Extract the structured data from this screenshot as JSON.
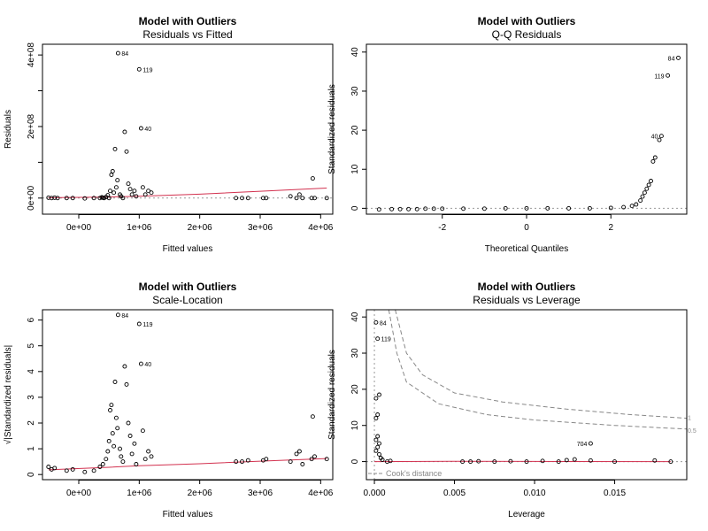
{
  "chart_data": [
    {
      "type": "scatter",
      "title": "Model with Outliers",
      "subtitle": "Residuals vs Fitted",
      "xlabel": "Fitted values",
      "ylabel": "Residuals",
      "xlim": [
        -600000,
        4200000
      ],
      "ylim": [
        -45000000,
        430000000
      ],
      "x_ticks": [
        0,
        1000000,
        2000000,
        3000000,
        4000000
      ],
      "x_tick_labels": [
        "0e+00",
        "1e+06",
        "2e+06",
        "3e+06",
        "4e+06"
      ],
      "y_ticks": [
        0,
        100000000,
        200000000,
        300000000,
        400000000
      ],
      "y_tick_labels": [
        "0e+00",
        "",
        "2e+08",
        "",
        "4e+08"
      ],
      "reference_line": 0,
      "smooth_line": [
        [
          -500000,
          1000000
        ],
        [
          500000,
          3000000
        ],
        [
          1000000,
          5000000
        ],
        [
          2000000,
          11000000
        ],
        [
          3000000,
          19000000
        ],
        [
          4100000,
          28000000
        ]
      ],
      "points": [
        {
          "x": -500000,
          "y": 1000000
        },
        {
          "x": -450000,
          "y": 0
        },
        {
          "x": -400000,
          "y": 1000000
        },
        {
          "x": -350000,
          "y": 0
        },
        {
          "x": -200000,
          "y": 0
        },
        {
          "x": -100000,
          "y": 0
        },
        {
          "x": 100000,
          "y": -1000000
        },
        {
          "x": 250000,
          "y": 0
        },
        {
          "x": 350000,
          "y": 0
        },
        {
          "x": 380000,
          "y": 2000000
        },
        {
          "x": 400000,
          "y": 1000000
        },
        {
          "x": 420000,
          "y": 0
        },
        {
          "x": 450000,
          "y": 3000000
        },
        {
          "x": 480000,
          "y": 8000000
        },
        {
          "x": 500000,
          "y": 0
        },
        {
          "x": 520000,
          "y": 20000000
        },
        {
          "x": 540000,
          "y": 65000000
        },
        {
          "x": 560000,
          "y": 75000000
        },
        {
          "x": 580000,
          "y": 15000000
        },
        {
          "x": 600000,
          "y": 137000000
        },
        {
          "x": 620000,
          "y": 30000000
        },
        {
          "x": 640000,
          "y": 50000000
        },
        {
          "x": 650000,
          "y": 405000000
        },
        {
          "x": 680000,
          "y": 10000000
        },
        {
          "x": 700000,
          "y": 5000000
        },
        {
          "x": 730000,
          "y": 0
        },
        {
          "x": 760000,
          "y": 185000000
        },
        {
          "x": 790000,
          "y": 130000000
        },
        {
          "x": 820000,
          "y": 40000000
        },
        {
          "x": 850000,
          "y": 25000000
        },
        {
          "x": 880000,
          "y": 10000000
        },
        {
          "x": 920000,
          "y": 20000000
        },
        {
          "x": 950000,
          "y": 5000000
        },
        {
          "x": 1000000,
          "y": 360000000
        },
        {
          "x": 1030000,
          "y": 195000000
        },
        {
          "x": 1060000,
          "y": 30000000
        },
        {
          "x": 1100000,
          "y": 10000000
        },
        {
          "x": 1150000,
          "y": 20000000
        },
        {
          "x": 1200000,
          "y": 15000000
        },
        {
          "x": 2600000,
          "y": 0
        },
        {
          "x": 2700000,
          "y": 0
        },
        {
          "x": 2800000,
          "y": 0
        },
        {
          "x": 3050000,
          "y": 0
        },
        {
          "x": 3100000,
          "y": 0
        },
        {
          "x": 3500000,
          "y": 5000000
        },
        {
          "x": 3600000,
          "y": 0
        },
        {
          "x": 3650000,
          "y": 10000000
        },
        {
          "x": 3700000,
          "y": 0
        },
        {
          "x": 3850000,
          "y": 0
        },
        {
          "x": 3870000,
          "y": 55000000
        },
        {
          "x": 3900000,
          "y": 0
        },
        {
          "x": 4100000,
          "y": 0
        }
      ],
      "labels": [
        {
          "text": "84",
          "x": 650000,
          "y": 405000000
        },
        {
          "text": "119",
          "x": 1000000,
          "y": 360000000
        },
        {
          "text": "40",
          "x": 1030000,
          "y": 195000000
        }
      ]
    },
    {
      "type": "scatter",
      "title": "Model with Outliers",
      "subtitle": "Q-Q Residuals",
      "xlabel": "Theoretical Quantiles",
      "ylabel": "Standardized residuals",
      "xlim": [
        -3.8,
        3.8
      ],
      "ylim": [
        -1.5,
        42
      ],
      "x_ticks": [
        -2,
        0,
        2
      ],
      "x_tick_labels": [
        "-2",
        "0",
        "2"
      ],
      "y_ticks": [
        0,
        10,
        20,
        30,
        40
      ],
      "y_tick_labels": [
        "0",
        "10",
        "20",
        "30",
        "40"
      ],
      "reference_line": 0,
      "points": [
        {
          "x": -3.5,
          "y": -0.3
        },
        {
          "x": -3.2,
          "y": -0.2
        },
        {
          "x": -3.0,
          "y": -0.2
        },
        {
          "x": -2.8,
          "y": -0.2
        },
        {
          "x": -2.6,
          "y": -0.2
        },
        {
          "x": -2.4,
          "y": -0.1
        },
        {
          "x": -2.2,
          "y": -0.1
        },
        {
          "x": -2.0,
          "y": -0.1
        },
        {
          "x": -1.5,
          "y": -0.1
        },
        {
          "x": -1.0,
          "y": -0.1
        },
        {
          "x": -0.5,
          "y": 0.0
        },
        {
          "x": 0.0,
          "y": 0.0
        },
        {
          "x": 0.5,
          "y": 0.0
        },
        {
          "x": 1.0,
          "y": 0.0
        },
        {
          "x": 1.5,
          "y": 0.0
        },
        {
          "x": 2.0,
          "y": 0.1
        },
        {
          "x": 2.3,
          "y": 0.3
        },
        {
          "x": 2.5,
          "y": 0.6
        },
        {
          "x": 2.6,
          "y": 1.0
        },
        {
          "x": 2.7,
          "y": 2.0
        },
        {
          "x": 2.75,
          "y": 3.0
        },
        {
          "x": 2.8,
          "y": 4.0
        },
        {
          "x": 2.85,
          "y": 5.0
        },
        {
          "x": 2.9,
          "y": 6.0
        },
        {
          "x": 2.95,
          "y": 7.0
        },
        {
          "x": 3.0,
          "y": 12.0
        },
        {
          "x": 3.05,
          "y": 13.0
        },
        {
          "x": 3.15,
          "y": 17.5
        },
        {
          "x": 3.2,
          "y": 18.5
        },
        {
          "x": 3.35,
          "y": 34.0
        },
        {
          "x": 3.6,
          "y": 38.5
        }
      ],
      "labels": [
        {
          "text": "84",
          "x": 3.6,
          "y": 38.5
        },
        {
          "text": "119",
          "x": 3.35,
          "y": 34.0
        },
        {
          "text": "40",
          "x": 3.2,
          "y": 18.5
        }
      ]
    },
    {
      "type": "scatter",
      "title": "Model with Outliers",
      "subtitle": "Scale-Location",
      "xlabel": "Fitted values",
      "ylabel": "√|Standardized residuals|",
      "xlim": [
        -600000,
        4200000
      ],
      "ylim": [
        -0.2,
        6.4
      ],
      "x_ticks": [
        0,
        1000000,
        2000000,
        3000000,
        4000000
      ],
      "x_tick_labels": [
        "0e+00",
        "1e+06",
        "2e+06",
        "3e+06",
        "4e+06"
      ],
      "y_ticks": [
        0,
        1,
        2,
        3,
        4,
        5,
        6
      ],
      "y_tick_labels": [
        "0",
        "1",
        "2",
        "3",
        "4",
        "5",
        "6"
      ],
      "smooth_line": [
        [
          -500000,
          0.18
        ],
        [
          500000,
          0.28
        ],
        [
          1000000,
          0.34
        ],
        [
          2000000,
          0.42
        ],
        [
          3000000,
          0.52
        ],
        [
          4100000,
          0.62
        ]
      ],
      "points": [
        {
          "x": -500000,
          "y": 0.3
        },
        {
          "x": -450000,
          "y": 0.2
        },
        {
          "x": -400000,
          "y": 0.25
        },
        {
          "x": -200000,
          "y": 0.15
        },
        {
          "x": -100000,
          "y": 0.2
        },
        {
          "x": 100000,
          "y": 0.1
        },
        {
          "x": 250000,
          "y": 0.15
        },
        {
          "x": 350000,
          "y": 0.3
        },
        {
          "x": 400000,
          "y": 0.4
        },
        {
          "x": 450000,
          "y": 0.6
        },
        {
          "x": 480000,
          "y": 0.9
        },
        {
          "x": 500000,
          "y": 1.3
        },
        {
          "x": 520000,
          "y": 2.5
        },
        {
          "x": 540000,
          "y": 2.7
        },
        {
          "x": 560000,
          "y": 1.6
        },
        {
          "x": 580000,
          "y": 1.1
        },
        {
          "x": 600000,
          "y": 3.6
        },
        {
          "x": 620000,
          "y": 2.2
        },
        {
          "x": 640000,
          "y": 1.8
        },
        {
          "x": 650000,
          "y": 6.2
        },
        {
          "x": 680000,
          "y": 1.0
        },
        {
          "x": 700000,
          "y": 0.7
        },
        {
          "x": 730000,
          "y": 0.5
        },
        {
          "x": 760000,
          "y": 4.2
        },
        {
          "x": 790000,
          "y": 3.5
        },
        {
          "x": 820000,
          "y": 2.0
        },
        {
          "x": 850000,
          "y": 1.5
        },
        {
          "x": 880000,
          "y": 0.8
        },
        {
          "x": 920000,
          "y": 1.2
        },
        {
          "x": 950000,
          "y": 0.4
        },
        {
          "x": 1000000,
          "y": 5.85
        },
        {
          "x": 1030000,
          "y": 4.3
        },
        {
          "x": 1060000,
          "y": 1.7
        },
        {
          "x": 1100000,
          "y": 0.6
        },
        {
          "x": 1150000,
          "y": 0.9
        },
        {
          "x": 1200000,
          "y": 0.7
        },
        {
          "x": 2600000,
          "y": 0.5
        },
        {
          "x": 2700000,
          "y": 0.5
        },
        {
          "x": 2800000,
          "y": 0.55
        },
        {
          "x": 3050000,
          "y": 0.55
        },
        {
          "x": 3100000,
          "y": 0.6
        },
        {
          "x": 3500000,
          "y": 0.5
        },
        {
          "x": 3600000,
          "y": 0.8
        },
        {
          "x": 3650000,
          "y": 0.9
        },
        {
          "x": 3700000,
          "y": 0.4
        },
        {
          "x": 3850000,
          "y": 0.6
        },
        {
          "x": 3870000,
          "y": 2.25
        },
        {
          "x": 3900000,
          "y": 0.7
        },
        {
          "x": 4100000,
          "y": 0.6
        }
      ],
      "labels": [
        {
          "text": "84",
          "x": 650000,
          "y": 6.2
        },
        {
          "text": "119",
          "x": 1000000,
          "y": 5.85
        },
        {
          "text": "40",
          "x": 1030000,
          "y": 4.3
        }
      ]
    },
    {
      "type": "scatter",
      "title": "Model with Outliers",
      "subtitle": "Residuals vs Leverage",
      "xlabel": "Leverage",
      "ylabel": "Standardized residuals",
      "xlim": [
        -0.0005,
        0.0195
      ],
      "ylim": [
        -5,
        42
      ],
      "x_ticks": [
        0,
        0.005,
        0.01,
        0.015
      ],
      "x_tick_labels": [
        "0.000",
        "0.005",
        "0.010",
        "0.015"
      ],
      "y_ticks": [
        0,
        10,
        20,
        30,
        40
      ],
      "y_tick_labels": [
        "0",
        "10",
        "20",
        "30",
        "40"
      ],
      "reference_line": 0,
      "cooks_legend": "Cook's distance",
      "cooks_contours": [
        {
          "label": "1",
          "points": [
            [
              0.0013,
              42
            ],
            [
              0.002,
              30
            ],
            [
              0.003,
              24
            ],
            [
              0.005,
              19
            ],
            [
              0.008,
              16.5
            ],
            [
              0.012,
              14.5
            ],
            [
              0.016,
              13
            ],
            [
              0.0195,
              12
            ]
          ]
        },
        {
          "label": "0.5",
          "points": [
            [
              0.0009,
              42
            ],
            [
              0.0014,
              30
            ],
            [
              0.002,
              22
            ],
            [
              0.004,
              16
            ],
            [
              0.007,
              13
            ],
            [
              0.01,
              11.5
            ],
            [
              0.015,
              10
            ],
            [
              0.0195,
              9
            ]
          ]
        }
      ],
      "smooth_line": [
        [
          0.0,
          0.0
        ],
        [
          0.005,
          0.1
        ],
        [
          0.01,
          0.05
        ],
        [
          0.0185,
          0.0
        ]
      ],
      "points": [
        {
          "x": 0.0001,
          "y": 38.5
        },
        {
          "x": 0.0002,
          "y": 34.0
        },
        {
          "x": 0.0003,
          "y": 18.5
        },
        {
          "x": 0.0001,
          "y": 17.5
        },
        {
          "x": 0.0002,
          "y": 13.0
        },
        {
          "x": 0.0001,
          "y": 12.0
        },
        {
          "x": 0.0002,
          "y": 7.0
        },
        {
          "x": 0.0001,
          "y": 6.0
        },
        {
          "x": 0.0003,
          "y": 5.0
        },
        {
          "x": 0.0002,
          "y": 4.0
        },
        {
          "x": 0.0001,
          "y": 3.0
        },
        {
          "x": 0.0003,
          "y": 2.0
        },
        {
          "x": 0.0004,
          "y": 1.0
        },
        {
          "x": 0.0005,
          "y": 0.5
        },
        {
          "x": 0.0008,
          "y": 0.0
        },
        {
          "x": 0.001,
          "y": 0.2
        },
        {
          "x": 0.0055,
          "y": 0.0
        },
        {
          "x": 0.006,
          "y": 0.0
        },
        {
          "x": 0.0065,
          "y": 0.1
        },
        {
          "x": 0.0075,
          "y": 0.0
        },
        {
          "x": 0.0085,
          "y": 0.1
        },
        {
          "x": 0.0095,
          "y": 0.0
        },
        {
          "x": 0.0105,
          "y": 0.2
        },
        {
          "x": 0.0115,
          "y": 0.0
        },
        {
          "x": 0.012,
          "y": 0.4
        },
        {
          "x": 0.0125,
          "y": 0.6
        },
        {
          "x": 0.0135,
          "y": 5.0
        },
        {
          "x": 0.0135,
          "y": 0.3
        },
        {
          "x": 0.015,
          "y": 0.0
        },
        {
          "x": 0.0175,
          "y": 0.3
        },
        {
          "x": 0.0185,
          "y": 0.0
        }
      ],
      "labels": [
        {
          "text": "84",
          "x": 0.0001,
          "y": 38.5
        },
        {
          "text": "119",
          "x": 0.0002,
          "y": 34.0
        },
        {
          "text": "704",
          "x": 0.0135,
          "y": 5.0
        }
      ]
    }
  ]
}
